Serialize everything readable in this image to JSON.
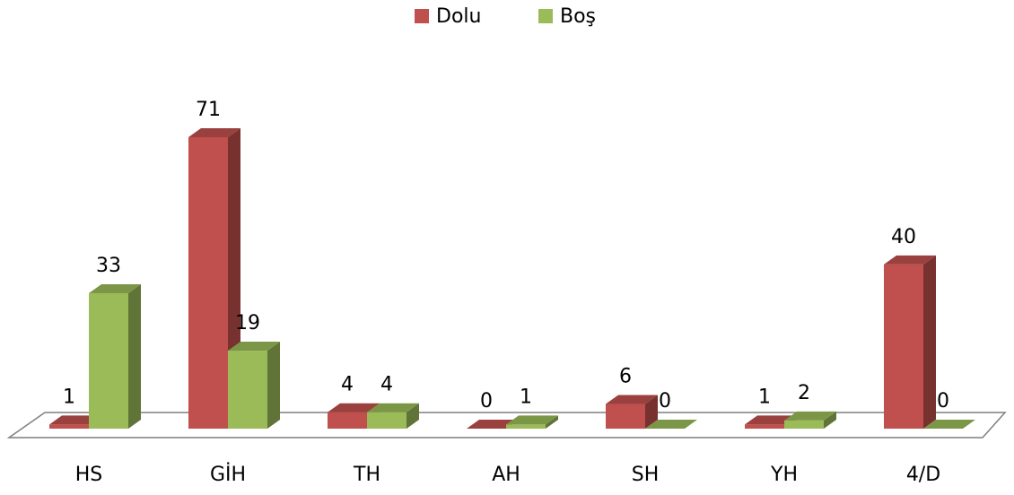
{
  "chart_data": {
    "type": "bar3d",
    "categories": [
      "HS",
      "GİH",
      "TH",
      "AH",
      "SH",
      "YH",
      "4/D"
    ],
    "series": [
      {
        "name": "Dolu",
        "color": "#c0504d",
        "values": [
          1,
          71,
          4,
          0,
          6,
          1,
          40
        ]
      },
      {
        "name": "Boş",
        "color": "#9bbb59",
        "values": [
          33,
          19,
          4,
          1,
          0,
          2,
          0
        ]
      }
    ],
    "legend": "top"
  }
}
